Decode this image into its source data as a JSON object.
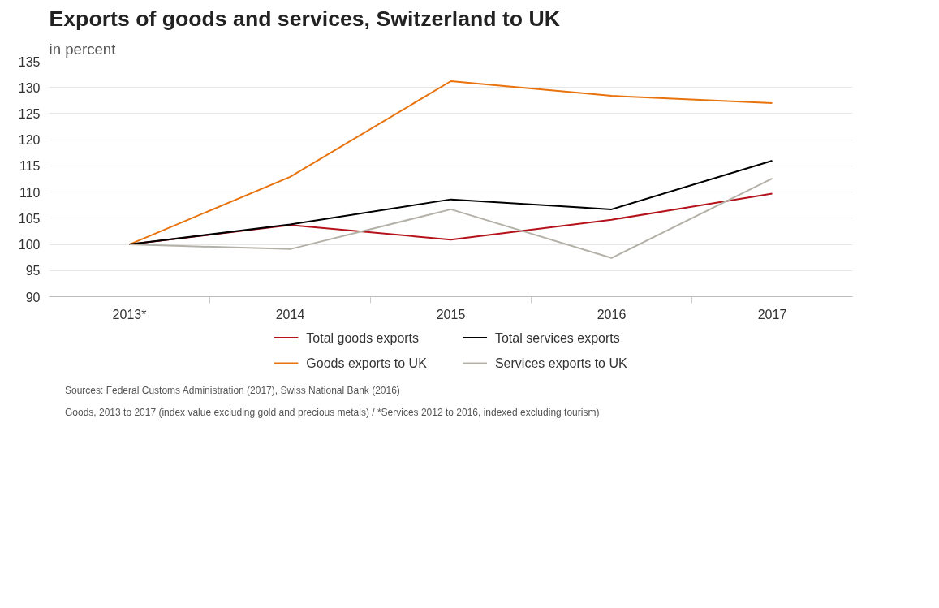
{
  "chart_data": {
    "type": "line",
    "title": "Exports of goods and services, Switzerland to UK",
    "subtitle": "in percent",
    "categories": [
      "2013*",
      "2014",
      "2015",
      "2016",
      "2017"
    ],
    "series": [
      {
        "name": "Total goods exports",
        "color": "#b5121b",
        "values": [
          100,
          103.7,
          100.9,
          104.7,
          109.7
        ]
      },
      {
        "name": "Goods exports to UK",
        "color": "#e8720c",
        "values": [
          100,
          112.9,
          131.2,
          128.4,
          127
        ]
      },
      {
        "name": "Total services exports",
        "color": "#000000",
        "values": [
          100,
          103.8,
          108.6,
          106.7,
          116
        ]
      },
      {
        "name": "Services exports to UK",
        "color": "#b3b1a8",
        "values": [
          100,
          99.1,
          106.7,
          97.4,
          112.6
        ]
      }
    ],
    "ylim": [
      90,
      135
    ],
    "yticks": [
      90,
      95,
      100,
      105,
      110,
      115,
      120,
      125,
      130,
      135
    ],
    "grid": "y",
    "legend": "bottom",
    "marker": "none",
    "line_style": "solid",
    "annotations": [
      "Sources: Federal Customs Administration (2017), Swiss National Bank (2016)",
      "Goods, 2013 to 2017 (index value excluding gold and precious metals) / *Services 2012 to 2016, indexed excluding tourism)"
    ]
  }
}
